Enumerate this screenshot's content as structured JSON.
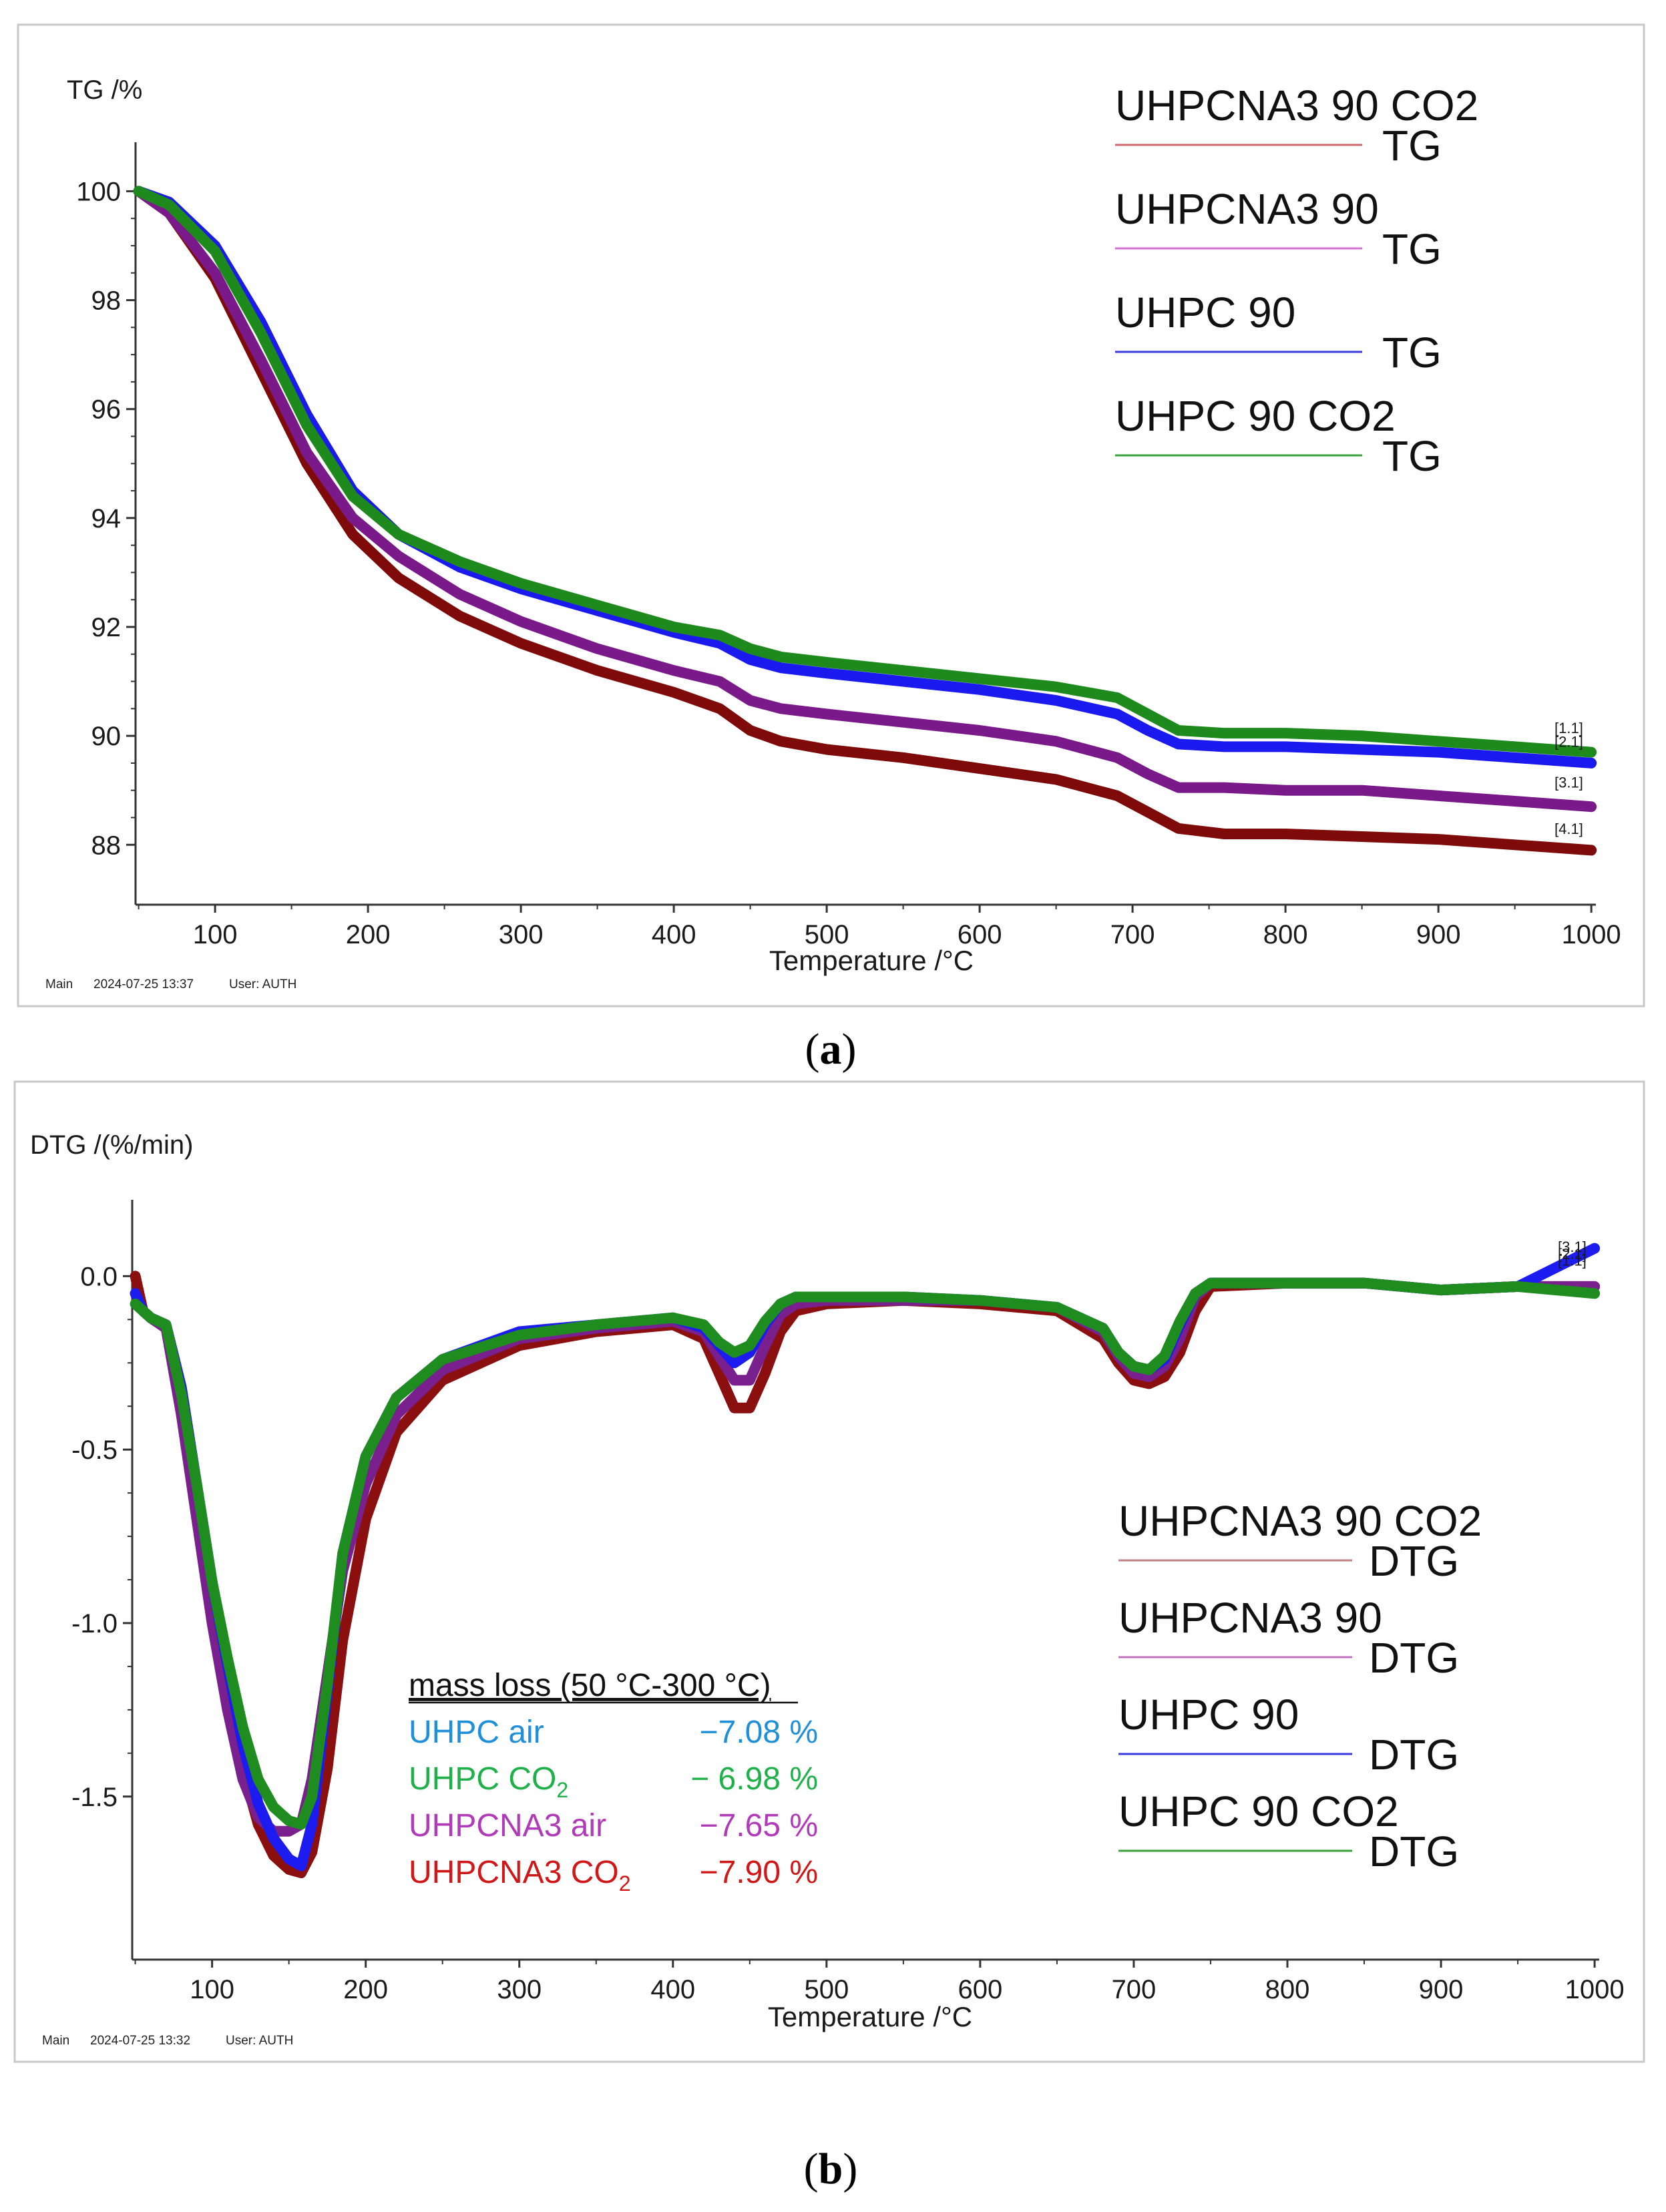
{
  "chart_data": [
    {
      "type": "line",
      "panel_caption": "(a)",
      "caption_letter": "a",
      "ylabel": "TG /%",
      "xlabel": "Temperature /°C",
      "xlim": [
        48,
        1003
      ],
      "ylim": [
        86.9,
        100.9
      ],
      "xticks": [
        100,
        200,
        300,
        400,
        500,
        600,
        700,
        800,
        900,
        1000
      ],
      "yticks": [
        88,
        90,
        92,
        94,
        96,
        98,
        100
      ],
      "ytick_labels": [
        "88",
        "90",
        "92",
        "94",
        "96",
        "98",
        "100"
      ],
      "footer": {
        "main": "Main",
        "datetime": "2024-07-25 13:37",
        "user": "User: AUTH"
      },
      "legend": [
        {
          "name": "UHPCNA3 90 CO2",
          "sub": "TG",
          "color": "#d06a6a"
        },
        {
          "name": "UHPCNA3 90",
          "sub": "TG",
          "color": "#d070d0"
        },
        {
          "name": "UHPC 90",
          "sub": "TG",
          "color": "#3a3ae0"
        },
        {
          "name": "UHPC 90 CO2",
          "sub": "TG",
          "color": "#3aa03a"
        }
      ],
      "end_markers": [
        {
          "label": "[1.1]",
          "color": "#2e8b2e",
          "y": 90.05
        },
        {
          "label": "[2.1]",
          "color": "#2a2ad0",
          "y": 89.8
        },
        {
          "label": "[3.1]",
          "color": "#8a2a8a",
          "y": 89.05
        },
        {
          "label": "[4.1]",
          "color": "#8b1a1a",
          "y": 88.2
        }
      ],
      "series": [
        {
          "name": "UHPCNA3 90 CO2",
          "color": "#7f0a0a",
          "x": [
            50,
            70,
            100,
            130,
            160,
            190,
            220,
            260,
            300,
            350,
            400,
            430,
            450,
            470,
            500,
            550,
            600,
            650,
            690,
            710,
            730,
            760,
            800,
            850,
            900,
            950,
            1000
          ],
          "y": [
            100,
            99.6,
            98.4,
            96.7,
            95.0,
            93.7,
            92.9,
            92.2,
            91.7,
            91.2,
            90.8,
            90.5,
            90.1,
            89.9,
            89.75,
            89.6,
            89.4,
            89.2,
            88.9,
            88.6,
            88.3,
            88.2,
            88.2,
            88.15,
            88.1,
            88.0,
            87.9
          ]
        },
        {
          "name": "UHPCNA3 90",
          "color": "#7a1a8a",
          "x": [
            50,
            70,
            100,
            130,
            160,
            190,
            220,
            260,
            300,
            350,
            400,
            430,
            450,
            470,
            500,
            550,
            600,
            650,
            690,
            710,
            730,
            760,
            800,
            850,
            900,
            950,
            1000
          ],
          "y": [
            100,
            99.6,
            98.5,
            96.9,
            95.2,
            94.0,
            93.3,
            92.6,
            92.1,
            91.6,
            91.2,
            91.0,
            90.65,
            90.5,
            90.4,
            90.25,
            90.1,
            89.9,
            89.6,
            89.3,
            89.05,
            89.05,
            89.0,
            89.0,
            88.9,
            88.8,
            88.7
          ]
        },
        {
          "name": "UHPC 90",
          "color": "#1a1aee",
          "x": [
            50,
            70,
            100,
            130,
            160,
            190,
            220,
            260,
            300,
            350,
            400,
            430,
            450,
            470,
            500,
            550,
            600,
            650,
            690,
            710,
            730,
            760,
            800,
            850,
            900,
            950,
            1000
          ],
          "y": [
            100,
            99.8,
            99.0,
            97.6,
            95.9,
            94.5,
            93.7,
            93.1,
            92.7,
            92.3,
            91.9,
            91.7,
            91.4,
            91.25,
            91.15,
            91.0,
            90.85,
            90.65,
            90.4,
            90.1,
            89.85,
            89.8,
            89.8,
            89.75,
            89.7,
            89.6,
            89.5
          ]
        },
        {
          "name": "UHPC 90 CO2",
          "color": "#1e8a1e",
          "x": [
            50,
            70,
            100,
            130,
            160,
            190,
            220,
            260,
            300,
            350,
            400,
            430,
            450,
            470,
            500,
            550,
            600,
            650,
            690,
            710,
            730,
            760,
            800,
            850,
            900,
            950,
            1000
          ],
          "y": [
            100,
            99.75,
            98.9,
            97.4,
            95.7,
            94.4,
            93.7,
            93.2,
            92.8,
            92.4,
            92.0,
            91.85,
            91.6,
            91.45,
            91.35,
            91.2,
            91.05,
            90.9,
            90.7,
            90.4,
            90.1,
            90.05,
            90.05,
            90.0,
            89.9,
            89.8,
            89.7
          ]
        }
      ]
    },
    {
      "type": "line",
      "panel_caption": "(b)",
      "caption_letter": "b",
      "ylabel": "DTG /(%/min)",
      "xlabel": "Temperature /°C",
      "xlim": [
        48,
        1003
      ],
      "ylim": [
        -1.97,
        0.22
      ],
      "xticks": [
        100,
        200,
        300,
        400,
        500,
        600,
        700,
        800,
        900,
        1000
      ],
      "yticks": [
        0.0,
        -0.5,
        -1.0,
        -1.5
      ],
      "ytick_labels": [
        "0.0",
        "-0.5",
        "-1.0",
        "-1.5"
      ],
      "footer": {
        "main": "Main",
        "datetime": "2024-07-25 13:32",
        "user": "User: AUTH"
      },
      "legend": [
        {
          "name": "UHPCNA3 90 CO2",
          "sub": "DTG",
          "color": "#c08080"
        },
        {
          "name": "UHPCNA3 90",
          "sub": "DTG",
          "color": "#c070c0"
        },
        {
          "name": "UHPC 90",
          "sub": "DTG",
          "color": "#3a3ae0"
        },
        {
          "name": "UHPC 90 CO2",
          "sub": "DTG",
          "color": "#3aa03a"
        }
      ],
      "mass_loss": {
        "title": "mass loss (50 °C-300 °C)",
        "rows": [
          {
            "label": "UHPC air",
            "value": "−7.08 %",
            "color": "#1f8fd8"
          },
          {
            "label": "UHPC CO",
            "sub": "2",
            "value": "− 6.98 %",
            "color": "#1fb04a"
          },
          {
            "label": "UHPCNA3 air",
            "value": "−7.65 %",
            "color": "#b03ab8"
          },
          {
            "label": "UHPCNA3 CO",
            "sub": "2",
            "value": "−7.90 %",
            "color": "#d01818"
          }
        ]
      },
      "end_markers": [
        {
          "label": "[3.1]",
          "color": "#8a2a8a",
          "y": 0.07
        },
        {
          "label": "[2.1]",
          "color": "#2a2ad0",
          "y": 0.05
        },
        {
          "label": "[1.1]",
          "color": "#2e8b2e",
          "y": 0.03
        }
      ],
      "series": [
        {
          "name": "UHPCNA3 90 CO2",
          "color": "#8b0f0f",
          "x": [
            50,
            55,
            60,
            70,
            80,
            90,
            100,
            110,
            120,
            130,
            140,
            150,
            158,
            165,
            175,
            185,
            200,
            220,
            250,
            300,
            350,
            400,
            420,
            430,
            440,
            450,
            460,
            470,
            480,
            500,
            550,
            600,
            650,
            680,
            690,
            700,
            710,
            720,
            730,
            740,
            750,
            800,
            850,
            900,
            950,
            1000
          ],
          "y": [
            0.0,
            -0.1,
            -0.12,
            -0.15,
            -0.35,
            -0.65,
            -0.95,
            -1.2,
            -1.42,
            -1.58,
            -1.67,
            -1.71,
            -1.72,
            -1.66,
            -1.42,
            -1.05,
            -0.7,
            -0.45,
            -0.3,
            -0.2,
            -0.16,
            -0.14,
            -0.18,
            -0.28,
            -0.38,
            -0.38,
            -0.28,
            -0.16,
            -0.1,
            -0.08,
            -0.07,
            -0.08,
            -0.1,
            -0.18,
            -0.25,
            -0.3,
            -0.31,
            -0.29,
            -0.22,
            -0.1,
            -0.03,
            -0.02,
            -0.02,
            -0.04,
            -0.03,
            -0.03
          ]
        },
        {
          "name": "UHPCNA3 90",
          "color": "#7a1f8e",
          "x": [
            50,
            55,
            60,
            70,
            80,
            90,
            100,
            110,
            120,
            130,
            140,
            150,
            158,
            165,
            175,
            185,
            200,
            220,
            250,
            300,
            350,
            400,
            420,
            430,
            440,
            450,
            460,
            470,
            480,
            500,
            550,
            600,
            650,
            680,
            690,
            700,
            710,
            720,
            730,
            740,
            750,
            800,
            850,
            900,
            950,
            1000
          ],
          "y": [
            -0.05,
            -0.1,
            -0.12,
            -0.15,
            -0.4,
            -0.7,
            -1.0,
            -1.25,
            -1.45,
            -1.56,
            -1.6,
            -1.6,
            -1.58,
            -1.45,
            -1.15,
            -0.85,
            -0.6,
            -0.4,
            -0.27,
            -0.18,
            -0.15,
            -0.13,
            -0.16,
            -0.23,
            -0.3,
            -0.3,
            -0.2,
            -0.11,
            -0.08,
            -0.07,
            -0.07,
            -0.07,
            -0.09,
            -0.16,
            -0.23,
            -0.28,
            -0.29,
            -0.26,
            -0.18,
            -0.06,
            -0.02,
            -0.02,
            -0.02,
            -0.04,
            -0.03,
            -0.03
          ]
        },
        {
          "name": "UHPC 90",
          "color": "#1c1cf0",
          "x": [
            50,
            55,
            60,
            70,
            80,
            90,
            100,
            110,
            120,
            130,
            140,
            150,
            158,
            165,
            175,
            185,
            200,
            220,
            250,
            300,
            350,
            400,
            420,
            430,
            440,
            450,
            460,
            470,
            480,
            500,
            550,
            600,
            650,
            680,
            690,
            700,
            710,
            720,
            730,
            740,
            750,
            800,
            850,
            900,
            950,
            1000
          ],
          "y": [
            -0.05,
            -0.1,
            -0.12,
            -0.14,
            -0.32,
            -0.6,
            -0.88,
            -1.12,
            -1.35,
            -1.52,
            -1.62,
            -1.68,
            -1.7,
            -1.58,
            -1.2,
            -0.8,
            -0.52,
            -0.35,
            -0.24,
            -0.16,
            -0.14,
            -0.12,
            -0.15,
            -0.2,
            -0.25,
            -0.22,
            -0.14,
            -0.08,
            -0.06,
            -0.06,
            -0.06,
            -0.07,
            -0.09,
            -0.15,
            -0.22,
            -0.26,
            -0.27,
            -0.24,
            -0.14,
            -0.05,
            -0.02,
            -0.02,
            -0.02,
            -0.04,
            -0.03,
            0.08
          ]
        },
        {
          "name": "UHPC 90 CO2",
          "color": "#1f8c1f",
          "x": [
            50,
            55,
            60,
            70,
            80,
            90,
            100,
            110,
            120,
            130,
            140,
            150,
            158,
            165,
            175,
            185,
            200,
            220,
            250,
            300,
            350,
            400,
            420,
            430,
            440,
            450,
            460,
            470,
            480,
            500,
            550,
            600,
            650,
            680,
            690,
            700,
            710,
            720,
            730,
            740,
            750,
            800,
            850,
            900,
            950,
            1000
          ],
          "y": [
            -0.08,
            -0.1,
            -0.12,
            -0.14,
            -0.34,
            -0.6,
            -0.88,
            -1.1,
            -1.3,
            -1.45,
            -1.53,
            -1.57,
            -1.58,
            -1.5,
            -1.18,
            -0.8,
            -0.52,
            -0.35,
            -0.24,
            -0.17,
            -0.14,
            -0.12,
            -0.14,
            -0.19,
            -0.22,
            -0.2,
            -0.13,
            -0.08,
            -0.06,
            -0.06,
            -0.06,
            -0.07,
            -0.09,
            -0.15,
            -0.22,
            -0.26,
            -0.27,
            -0.23,
            -0.13,
            -0.05,
            -0.02,
            -0.02,
            -0.02,
            -0.04,
            -0.03,
            -0.05
          ]
        }
      ]
    }
  ]
}
